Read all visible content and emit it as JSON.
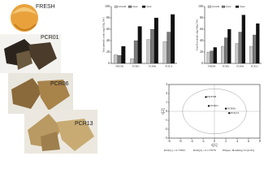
{
  "photo_labels": [
    "FRESH",
    "PCR01",
    "PCR06",
    "PCR13"
  ],
  "chart_data": [
    {
      "type": "bar",
      "ylabel": "Total phenolic acids (mg/100g DW)",
      "categories": [
        "FRESH",
        "PCR01",
        "PCR06",
        "PCR13"
      ],
      "series": [
        {
          "name": "1month",
          "color": "#c8c8c8",
          "values": [
            15,
            8,
            42,
            38
          ]
        },
        {
          "name": "2year",
          "color": "#7a7a7a",
          "values": [
            14,
            40,
            60,
            55
          ]
        },
        {
          "name": "3year",
          "color": "#111111",
          "values": [
            30,
            65,
            80,
            86
          ]
        }
      ],
      "ylim": [
        0,
        100
      ],
      "yticks": [
        0,
        20,
        40,
        60,
        80,
        100
      ]
    },
    {
      "type": "bar",
      "ylabel": "Total flavonoids (mg/100g DW)",
      "categories": [
        "FRESH",
        "PCR01",
        "PCR06",
        "PCR13"
      ],
      "series": [
        {
          "name": "1month",
          "color": "#c8c8c8",
          "values": [
            20,
            30,
            35,
            30
          ]
        },
        {
          "name": "2year",
          "color": "#7a7a7a",
          "values": [
            22,
            45,
            55,
            50
          ]
        },
        {
          "name": "3year",
          "color": "#111111",
          "values": [
            28,
            60,
            85,
            70
          ]
        }
      ],
      "ylim": [
        0,
        100
      ],
      "yticks": [
        0,
        20,
        40,
        60,
        80,
        100
      ]
    },
    {
      "type": "scatter",
      "xlabel": "t[1]",
      "ylabel": "t[2]",
      "labels": [
        "FRESH",
        "PCR01",
        "PCR06",
        "PCR13"
      ],
      "x": [
        -1.5,
        -1,
        2,
        2.6
      ],
      "values": [
        1.6,
        0.6,
        0.3,
        -0.2
      ],
      "xlim": [
        -8,
        8
      ],
      "xticks": [
        -8,
        -6,
        -4,
        -2,
        0,
        2,
        4,
        6,
        8
      ],
      "ylim": [
        -3,
        3
      ],
      "yticks": [
        -3,
        -2,
        -1,
        0,
        1,
        2,
        3
      ],
      "annotations": [
        "R2X[1] = 0.77693",
        "R2X[2] = 0.177078",
        "Ellipse: Hotelling T2 (0.95)"
      ]
    }
  ]
}
